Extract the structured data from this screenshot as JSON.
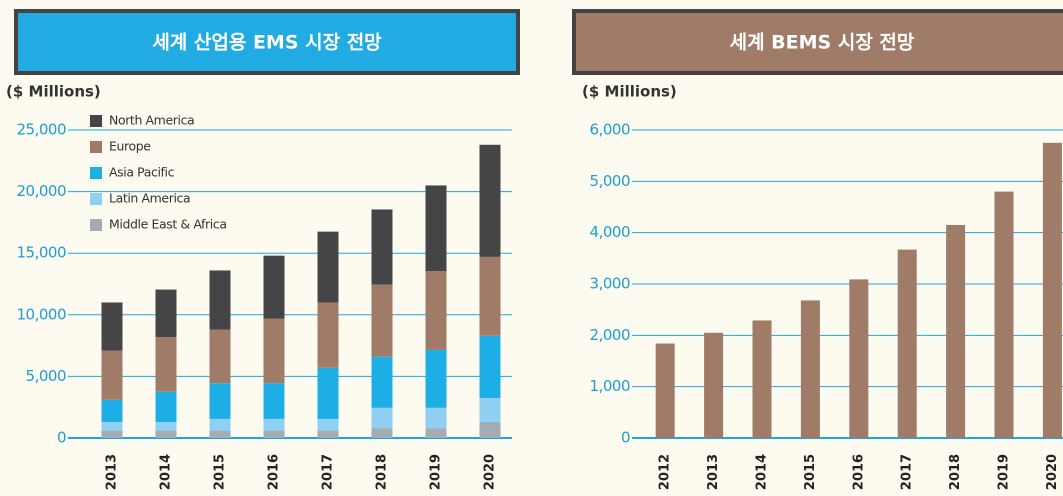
{
  "chart_data": [
    {
      "type": "stacked_bar",
      "title": "세계 산업용 EMS 시장 전망",
      "y_label": "($ Millions)",
      "categories": [
        "2013",
        "2014",
        "2015",
        "2016",
        "2017",
        "2018",
        "2019",
        "2020"
      ],
      "series": [
        {
          "name": "Middle East & Africa",
          "color": "#a3abb3",
          "values": [
            600,
            600,
            600,
            600,
            600,
            800,
            800,
            1300
          ]
        },
        {
          "name": "Latin America",
          "color": "#8fd0f2",
          "values": [
            700,
            700,
            950,
            950,
            950,
            1650,
            1650,
            1950
          ]
        },
        {
          "name": "Asia Pacific",
          "color": "#1eaee6",
          "values": [
            1800,
            2450,
            2900,
            2900,
            4150,
            4150,
            4700,
            5050
          ]
        },
        {
          "name": "Europe",
          "color": "#a07b68",
          "values": [
            4000,
            4450,
            4350,
            5250,
            5300,
            5850,
            6400,
            6400
          ]
        },
        {
          "name": "North America",
          "color": "#454547",
          "values": [
            3900,
            3850,
            4800,
            5100,
            5750,
            6100,
            6950,
            9100
          ]
        }
      ],
      "ylim": [
        0,
        25000
      ],
      "yticks": [
        0,
        {
          "value": 5000,
          "label": "5,000"
        },
        {
          "value": 10000,
          "label": "10,000"
        },
        {
          "value": 15000,
          "label": "15,000"
        },
        {
          "value": 20000,
          "label": "20,000"
        },
        {
          "value": 25000,
          "label": "25,000"
        }
      ],
      "grid": true,
      "title_color": "#22aae3"
    },
    {
      "type": "bar",
      "title": "세계 BEMS 시장 전망",
      "y_label": "($ Millions)",
      "categories": [
        "2012",
        "2013",
        "2014",
        "2015",
        "2016",
        "2017",
        "2018",
        "2019",
        "2020"
      ],
      "values": [
        1840,
        2050,
        2290,
        2680,
        3090,
        3670,
        4150,
        4800,
        5750
      ],
      "color": "#a07b68",
      "ylim": [
        0,
        6000
      ],
      "yticks": [
        0,
        {
          "value": 1000,
          "label": "1,000"
        },
        {
          "value": 2000,
          "label": "2,000"
        },
        {
          "value": 3000,
          "label": "3,000"
        },
        {
          "value": 4000,
          "label": "4,000"
        },
        {
          "value": 5000,
          "label": "5,000"
        },
        {
          "value": 6000,
          "label": "6,000"
        }
      ],
      "grid": true,
      "title_color": "#a07b68"
    }
  ]
}
